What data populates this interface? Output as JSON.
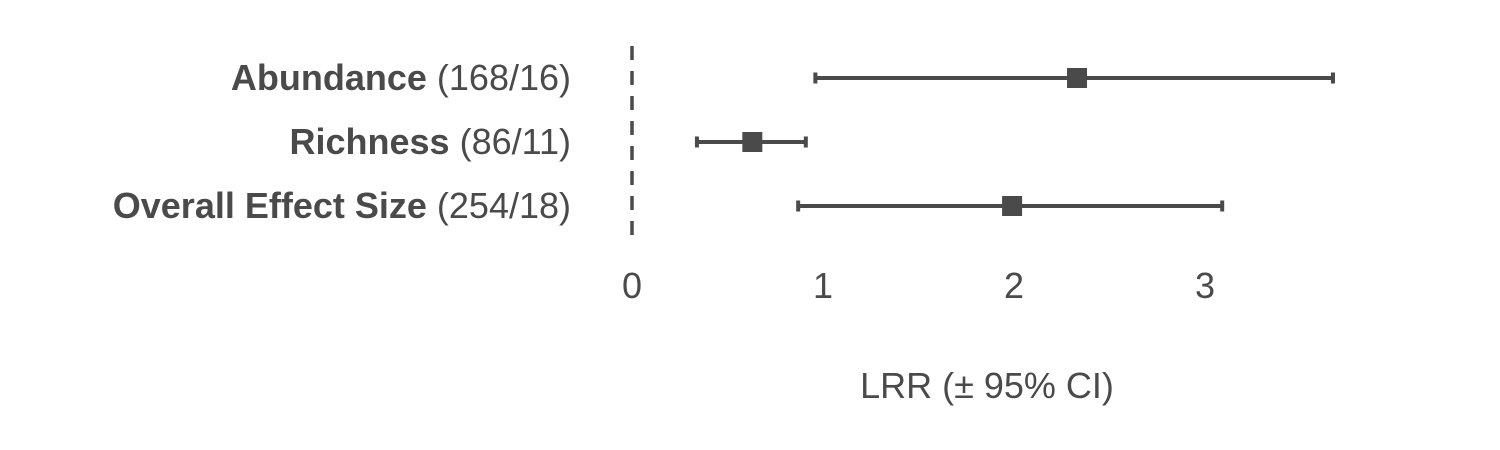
{
  "chart_data": {
    "type": "forest",
    "xlabel": "LRR (± 95% CI)",
    "xlim": [
      0,
      3.7
    ],
    "xticks": [
      0,
      1,
      2,
      3
    ],
    "reference_line": 0,
    "rows": [
      {
        "label": "Abundance",
        "counts": "(168/16)",
        "estimate": 2.33,
        "ci_lower": 0.96,
        "ci_upper": 3.67
      },
      {
        "label": "Richness",
        "counts": "(86/11)",
        "estimate": 0.63,
        "ci_lower": 0.34,
        "ci_upper": 0.91
      },
      {
        "label": "Overall Effect Size",
        "counts": "(254/18)",
        "estimate": 1.99,
        "ci_lower": 0.87,
        "ci_upper": 3.09
      }
    ],
    "colors": {
      "marks": "#4a4a4a",
      "text": "#4a4a4a"
    }
  }
}
